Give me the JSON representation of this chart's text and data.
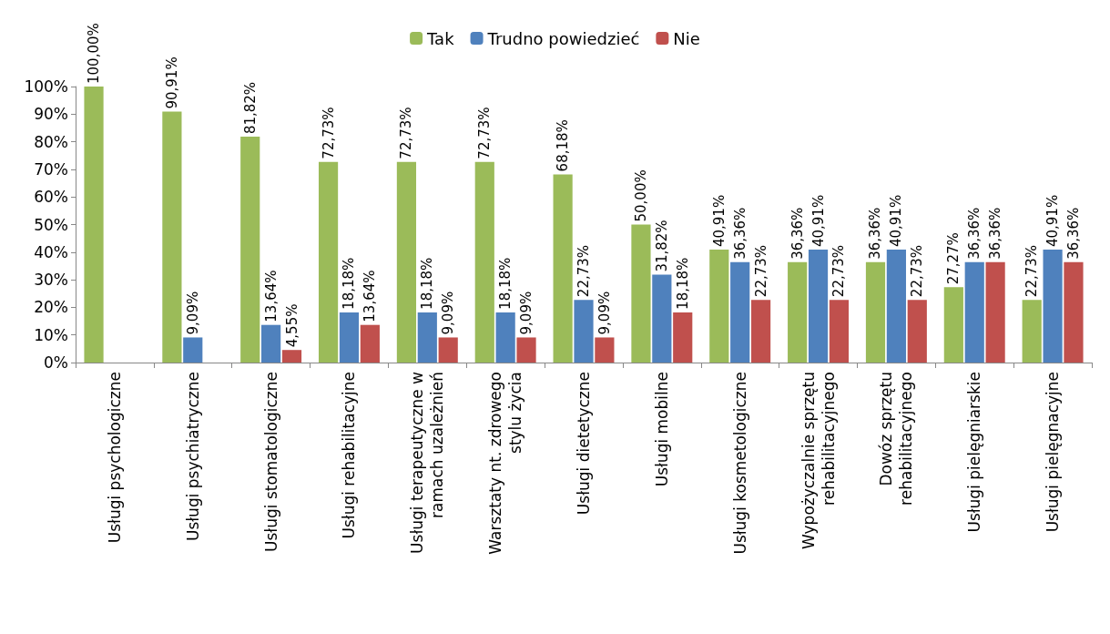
{
  "chart_data": {
    "type": "bar",
    "categories": [
      "Usługi psychologiczne",
      "Usługi psychiatryczne",
      "Usługi stomatologiczne",
      "Usługi rehabilitacyjne",
      "Usługi terapeutyczne w\nramach uzależnień",
      "Warsztaty nt. zdrowego\nstylu życia",
      "Usługi dietetyczne",
      "Usługi mobilne",
      "Usługi kosmetologiczne",
      "Wypożyczalnie sprzętu\nrehabilitacyjnego",
      "Dowóz sprzętu\nrehabilitacyjnego",
      "Usługi pielęgniarskie",
      "Usługi pielęgnacyjne"
    ],
    "series": [
      {
        "name": "Tak",
        "color": "#9bbb59",
        "values": [
          100,
          90.91,
          81.82,
          72.73,
          72.73,
          72.73,
          68.18,
          50,
          40.91,
          36.36,
          36.36,
          27.27,
          22.73
        ],
        "value_labels": [
          "100,00%",
          "90,91%",
          "81,82%",
          "72,73%",
          "72,73%",
          "72,73%",
          "68,18%",
          "50,00%",
          "40,91%",
          "36,36%",
          "36,36%",
          "27,27%",
          "22,73%"
        ]
      },
      {
        "name": "Trudno powiedzieć",
        "color": "#4f81bd",
        "values": [
          0,
          9.09,
          13.64,
          18.18,
          18.18,
          18.18,
          22.73,
          31.82,
          36.36,
          40.91,
          40.91,
          36.36,
          40.91
        ],
        "value_labels": [
          null,
          "9,09%",
          "13,64%",
          "18,18%",
          "18,18%",
          "18,18%",
          "22,73%",
          "31,82%",
          "36,36%",
          "40,91%",
          "40,91%",
          "36,36%",
          "40,91%"
        ]
      },
      {
        "name": "Nie",
        "color": "#c0504d",
        "values": [
          0,
          0,
          4.55,
          13.64,
          9.09,
          9.09,
          9.09,
          18.18,
          22.73,
          22.73,
          22.73,
          36.36,
          36.36
        ],
        "value_labels": [
          null,
          null,
          "4,55%",
          "13,64%",
          "9,09%",
          "9,09%",
          "9,09%",
          "18,18%",
          "22,73%",
          "22,73%",
          "22,73%",
          "36,36%",
          "36,36%"
        ]
      }
    ],
    "ylim": [
      0,
      100
    ],
    "yticks": [
      {
        "value": 0,
        "label": "0%"
      },
      {
        "value": 10,
        "label": "10%"
      },
      {
        "value": 20,
        "label": "20%"
      },
      {
        "value": 30,
        "label": "30%"
      },
      {
        "value": 40,
        "label": "40%"
      },
      {
        "value": 50,
        "label": "50%"
      },
      {
        "value": 60,
        "label": "60%"
      },
      {
        "value": 70,
        "label": "70%"
      },
      {
        "value": 80,
        "label": "80%"
      },
      {
        "value": 90,
        "label": "90%"
      },
      {
        "value": 100,
        "label": "100%"
      }
    ],
    "grid": false,
    "legend": "top"
  }
}
